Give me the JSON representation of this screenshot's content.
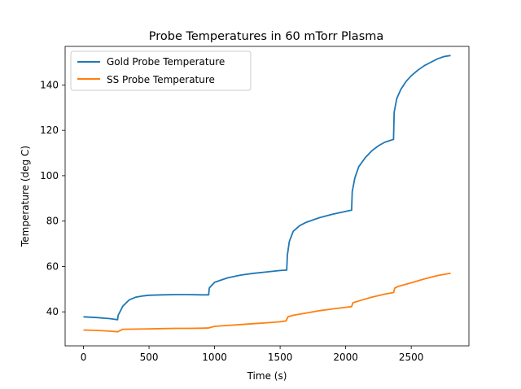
{
  "chart_data": {
    "type": "line",
    "title": "Probe Temperatures in 60 mTorr Plasma",
    "xlabel": "Time (s)",
    "ylabel": "Temperature (deg C)",
    "xlim": [
      -140,
      2940
    ],
    "ylim": [
      25,
      157
    ],
    "xticks": [
      0,
      500,
      1000,
      1500,
      2000,
      2500
    ],
    "yticks": [
      40,
      60,
      80,
      100,
      120,
      140
    ],
    "grid": false,
    "legend_position": "top-left",
    "series": [
      {
        "name": "Gold Probe Temperature",
        "color": "#1f77b4",
        "x": [
          0,
          100,
          200,
          260,
          265,
          300,
          350,
          400,
          450,
          500,
          600,
          700,
          800,
          900,
          955,
          960,
          1000,
          1100,
          1200,
          1300,
          1400,
          1500,
          1550,
          1555,
          1570,
          1600,
          1650,
          1700,
          1800,
          1900,
          2000,
          2045,
          2050,
          2070,
          2100,
          2150,
          2200,
          2250,
          2300,
          2365,
          2370,
          2390,
          2420,
          2460,
          2500,
          2550,
          2600,
          2650,
          2700,
          2750,
          2800
        ],
        "y": [
          37.8,
          37.5,
          37.0,
          36.5,
          38.5,
          42.5,
          45.3,
          46.5,
          47.0,
          47.3,
          47.5,
          47.6,
          47.6,
          47.5,
          47.5,
          50.5,
          53.0,
          55.0,
          56.2,
          57.0,
          57.6,
          58.2,
          58.4,
          65.0,
          71.0,
          75.5,
          78.0,
          79.5,
          81.5,
          83.0,
          84.3,
          84.8,
          93.0,
          99.0,
          104.0,
          108.0,
          111.0,
          113.2,
          114.8,
          116.0,
          128.0,
          134.0,
          138.0,
          141.5,
          144.0,
          146.5,
          148.5,
          150.0,
          151.5,
          152.5,
          153.0
        ]
      },
      {
        "name": "SS Probe Temperature",
        "color": "#ff7f0e",
        "x": [
          0,
          100,
          200,
          260,
          300,
          400,
          500,
          600,
          700,
          800,
          900,
          955,
          1000,
          1100,
          1200,
          1300,
          1400,
          1500,
          1545,
          1560,
          1600,
          1700,
          1800,
          1900,
          2000,
          2045,
          2055,
          2100,
          2200,
          2300,
          2365,
          2375,
          2400,
          2500,
          2600,
          2700,
          2800
        ],
        "y": [
          32.0,
          31.8,
          31.5,
          31.2,
          32.3,
          32.4,
          32.5,
          32.6,
          32.7,
          32.7,
          32.8,
          32.9,
          33.6,
          34.0,
          34.4,
          34.8,
          35.2,
          35.6,
          36.0,
          37.8,
          38.5,
          39.5,
          40.5,
          41.3,
          42.0,
          42.3,
          44.0,
          44.8,
          46.5,
          47.8,
          48.5,
          50.5,
          51.2,
          52.8,
          54.5,
          56.0,
          57.0
        ]
      }
    ]
  }
}
